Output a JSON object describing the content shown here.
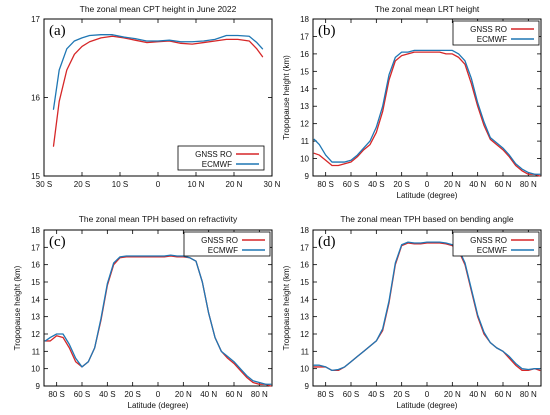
{
  "colors": {
    "gnss": "#d62728",
    "ecmwf": "#1f77b4",
    "frame": "#000000"
  },
  "chart_data": [
    {
      "type": "line",
      "panel": "(a)",
      "title": "The zonal mean CPT height in June 2022",
      "xlabel": "",
      "ylabel": "",
      "xlim": [
        -30,
        30
      ],
      "ylim": [
        15,
        17
      ],
      "xticks": [
        -30,
        -20,
        -10,
        0,
        10,
        20,
        30
      ],
      "xtick_labels": [
        "30 S",
        "20 S",
        "10 S",
        "0",
        "10 N",
        "20 N",
        "30 N"
      ],
      "yticks": [
        15,
        16,
        17
      ],
      "ytick_labels": [
        "15",
        "16",
        "17"
      ],
      "legend": "bottom-right",
      "series": [
        {
          "name": "GNSS RO",
          "color": "#d62728",
          "x": [
            -27.5,
            -26,
            -24,
            -22,
            -20,
            -18,
            -15,
            -12,
            -9,
            -6,
            -3,
            0,
            3,
            6,
            9,
            12,
            15,
            18,
            21,
            24,
            26,
            27.5
          ],
          "y": [
            15.38,
            15.95,
            16.35,
            16.55,
            16.65,
            16.71,
            16.76,
            16.78,
            16.76,
            16.73,
            16.7,
            16.71,
            16.72,
            16.69,
            16.68,
            16.7,
            16.72,
            16.74,
            16.74,
            16.72,
            16.62,
            16.52
          ]
        },
        {
          "name": "ECMWF",
          "color": "#1f77b4",
          "x": [
            -27.5,
            -26,
            -24,
            -22,
            -20,
            -18,
            -15,
            -12,
            -9,
            -6,
            -3,
            0,
            3,
            6,
            9,
            12,
            15,
            18,
            21,
            24,
            26,
            27.5
          ],
          "y": [
            15.85,
            16.35,
            16.62,
            16.72,
            16.76,
            16.79,
            16.8,
            16.8,
            16.77,
            16.75,
            16.72,
            16.72,
            16.73,
            16.71,
            16.71,
            16.72,
            16.74,
            16.79,
            16.79,
            16.78,
            16.7,
            16.62
          ]
        }
      ]
    },
    {
      "type": "line",
      "panel": "(b)",
      "title": "The zonal mean LRT height",
      "xlabel": "Latitude (degree)",
      "ylabel": "Tropopause height (km)",
      "xlim": [
        -90,
        90
      ],
      "ylim": [
        9,
        18
      ],
      "xticks": [
        -80,
        -60,
        -40,
        -20,
        0,
        20,
        40,
        60,
        80
      ],
      "xtick_labels": [
        "80 S",
        "60 S",
        "40 S",
        "20 S",
        "0",
        "20 N",
        "40 N",
        "60 N",
        "80 N"
      ],
      "yticks": [
        9,
        10,
        11,
        12,
        13,
        14,
        15,
        16,
        17,
        18
      ],
      "ytick_labels": [
        "9",
        "10",
        "11",
        "12",
        "13",
        "14",
        "15",
        "16",
        "17",
        "18"
      ],
      "legend": "top-right",
      "series": [
        {
          "name": "GNSS RO",
          "color": "#d62728",
          "x": [
            -89,
            -85,
            -80,
            -75,
            -70,
            -65,
            -60,
            -55,
            -50,
            -45,
            -40,
            -35,
            -30,
            -25,
            -20,
            -15,
            -10,
            -5,
            0,
            5,
            10,
            15,
            20,
            25,
            30,
            35,
            40,
            45,
            50,
            55,
            60,
            65,
            70,
            75,
            80,
            85,
            89
          ],
          "y": [
            10.3,
            10.2,
            9.9,
            9.6,
            9.6,
            9.7,
            9.8,
            10.1,
            10.5,
            10.8,
            11.5,
            12.7,
            14.5,
            15.6,
            15.9,
            16.0,
            16.1,
            16.1,
            16.1,
            16.1,
            16.1,
            16.0,
            16.0,
            15.8,
            15.4,
            14.3,
            13.0,
            11.9,
            11.1,
            10.8,
            10.5,
            10.1,
            9.6,
            9.3,
            9.1,
            9.1,
            9.0
          ]
        },
        {
          "name": "ECMWF",
          "color": "#1f77b4",
          "x": [
            -89,
            -85,
            -80,
            -75,
            -70,
            -65,
            -60,
            -55,
            -50,
            -45,
            -40,
            -35,
            -30,
            -25,
            -20,
            -15,
            -10,
            -5,
            0,
            5,
            10,
            15,
            20,
            25,
            30,
            35,
            40,
            45,
            50,
            55,
            60,
            65,
            70,
            75,
            80,
            85,
            89
          ],
          "y": [
            11.1,
            10.8,
            10.2,
            9.8,
            9.8,
            9.8,
            9.9,
            10.2,
            10.6,
            11.0,
            11.8,
            13.0,
            14.8,
            15.8,
            16.1,
            16.1,
            16.2,
            16.2,
            16.2,
            16.2,
            16.2,
            16.2,
            16.2,
            16.0,
            15.6,
            14.6,
            13.2,
            12.1,
            11.2,
            10.9,
            10.6,
            10.2,
            9.7,
            9.4,
            9.2,
            9.1,
            9.1
          ]
        }
      ]
    },
    {
      "type": "line",
      "panel": "(c)",
      "title": "The zonal mean TPH based on refractivity",
      "xlabel": "Latitude (degree)",
      "ylabel": "Tropopause height (km)",
      "xlim": [
        -90,
        90
      ],
      "ylim": [
        9,
        18
      ],
      "xticks": [
        -80,
        -60,
        -40,
        -20,
        0,
        20,
        40,
        60,
        80
      ],
      "xtick_labels": [
        "80 S",
        "60 S",
        "40 S",
        "20 S",
        "0",
        "20 N",
        "40 N",
        "60 N",
        "80 N"
      ],
      "yticks": [
        9,
        10,
        11,
        12,
        13,
        14,
        15,
        16,
        17,
        18
      ],
      "ytick_labels": [
        "9",
        "10",
        "11",
        "12",
        "13",
        "14",
        "15",
        "16",
        "17",
        "18"
      ],
      "legend": "top-right",
      "series": [
        {
          "name": "GNSS RO",
          "color": "#d62728",
          "x": [
            -89,
            -85,
            -80,
            -75,
            -70,
            -65,
            -60,
            -55,
            -50,
            -45,
            -40,
            -35,
            -30,
            -25,
            -20,
            -15,
            -10,
            -5,
            0,
            5,
            10,
            15,
            20,
            25,
            30,
            35,
            40,
            45,
            50,
            55,
            60,
            65,
            70,
            75,
            80,
            85,
            89
          ],
          "y": [
            11.6,
            11.6,
            11.9,
            11.8,
            11.2,
            10.4,
            10.1,
            10.4,
            11.2,
            12.8,
            14.8,
            16.0,
            16.4,
            16.45,
            16.45,
            16.45,
            16.45,
            16.45,
            16.45,
            16.45,
            16.5,
            16.45,
            16.45,
            16.4,
            16.2,
            15.0,
            13.2,
            11.8,
            11.0,
            10.6,
            10.3,
            9.9,
            9.5,
            9.2,
            9.1,
            9.1,
            9.0
          ]
        },
        {
          "name": "ECMWF",
          "color": "#1f77b4",
          "x": [
            -89,
            -85,
            -80,
            -75,
            -70,
            -65,
            -60,
            -55,
            -50,
            -45,
            -40,
            -35,
            -30,
            -25,
            -20,
            -15,
            -10,
            -5,
            0,
            5,
            10,
            15,
            20,
            25,
            30,
            35,
            40,
            45,
            50,
            55,
            60,
            65,
            70,
            75,
            80,
            85,
            89
          ],
          "y": [
            11.6,
            11.8,
            12.0,
            12.0,
            11.4,
            10.6,
            10.1,
            10.4,
            11.2,
            12.9,
            14.9,
            16.1,
            16.45,
            16.5,
            16.5,
            16.5,
            16.5,
            16.5,
            16.5,
            16.5,
            16.55,
            16.5,
            16.5,
            16.4,
            16.2,
            15.0,
            13.2,
            11.8,
            11.0,
            10.7,
            10.4,
            10.0,
            9.6,
            9.3,
            9.2,
            9.1,
            9.1
          ]
        }
      ]
    },
    {
      "type": "line",
      "panel": "(d)",
      "title": "The zonal mean TPH based on bending angle",
      "xlabel": "Latitude (degree)",
      "ylabel": "Tropopause height (km)",
      "xlim": [
        -90,
        90
      ],
      "ylim": [
        9,
        18
      ],
      "xticks": [
        -80,
        -60,
        -40,
        -20,
        0,
        20,
        40,
        60,
        80
      ],
      "xtick_labels": [
        "80 S",
        "60 S",
        "40 S",
        "20 S",
        "0",
        "20 N",
        "40 N",
        "60 N",
        "80 N"
      ],
      "yticks": [
        9,
        10,
        11,
        12,
        13,
        14,
        15,
        16,
        17,
        18
      ],
      "ytick_labels": [
        "9",
        "10",
        "11",
        "12",
        "13",
        "14",
        "15",
        "16",
        "17",
        "18"
      ],
      "legend": "top-right",
      "series": [
        {
          "name": "GNSS RO",
          "color": "#d62728",
          "x": [
            -89,
            -85,
            -80,
            -75,
            -70,
            -65,
            -60,
            -55,
            -50,
            -45,
            -40,
            -35,
            -30,
            -25,
            -20,
            -15,
            -10,
            -5,
            0,
            5,
            10,
            15,
            20,
            25,
            30,
            35,
            40,
            45,
            50,
            55,
            60,
            65,
            70,
            75,
            80,
            85,
            89
          ],
          "y": [
            10.1,
            10.1,
            10.1,
            9.9,
            9.9,
            10.1,
            10.4,
            10.7,
            11.0,
            11.3,
            11.6,
            12.2,
            13.8,
            16.0,
            17.1,
            17.25,
            17.2,
            17.2,
            17.25,
            17.25,
            17.25,
            17.2,
            17.1,
            16.8,
            16.0,
            14.5,
            13.0,
            12.0,
            11.5,
            11.2,
            11.0,
            10.6,
            10.2,
            9.9,
            9.9,
            10.0,
            9.9
          ]
        },
        {
          "name": "ECMWF",
          "color": "#1f77b4",
          "x": [
            -89,
            -85,
            -80,
            -75,
            -70,
            -65,
            -60,
            -55,
            -50,
            -45,
            -40,
            -35,
            -30,
            -25,
            -20,
            -15,
            -10,
            -5,
            0,
            5,
            10,
            15,
            20,
            25,
            30,
            35,
            40,
            45,
            50,
            55,
            60,
            65,
            70,
            75,
            80,
            85,
            89
          ],
          "y": [
            10.2,
            10.2,
            10.1,
            9.9,
            9.95,
            10.1,
            10.4,
            10.7,
            11.0,
            11.3,
            11.6,
            12.3,
            13.9,
            16.1,
            17.15,
            17.3,
            17.25,
            17.25,
            17.3,
            17.3,
            17.3,
            17.25,
            17.15,
            16.9,
            16.1,
            14.6,
            13.1,
            12.1,
            11.5,
            11.2,
            11.0,
            10.7,
            10.3,
            10.0,
            9.95,
            10.0,
            10.0
          ]
        }
      ]
    }
  ]
}
